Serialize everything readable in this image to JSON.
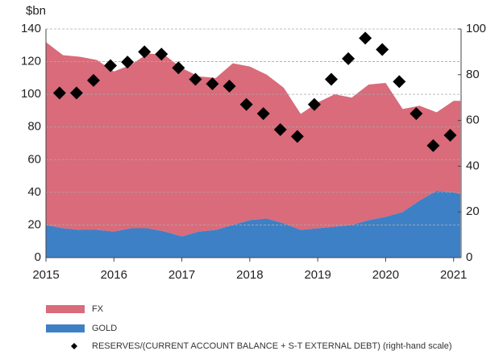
{
  "chart_data": {
    "type": "stacked-area-scatter",
    "ylabel": "$bn",
    "x": [
      2015,
      2015.25,
      2015.5,
      2015.75,
      2016,
      2016.25,
      2016.5,
      2016.75,
      2017,
      2017.25,
      2017.5,
      2017.75,
      2018,
      2018.25,
      2018.5,
      2018.75,
      2019,
      2019.25,
      2019.5,
      2019.75,
      2020,
      2020.25,
      2020.5,
      2020.75,
      2021,
      2021.1
    ],
    "series": [
      {
        "name": "GOLD",
        "color": "#3e80c6",
        "values": [
          20,
          18,
          17,
          17,
          16,
          18,
          18,
          16,
          13,
          16,
          17,
          20,
          23,
          24,
          21,
          17,
          18,
          19,
          20,
          23,
          25,
          28,
          35,
          41,
          40,
          39
        ]
      },
      {
        "name": "FX",
        "color": "#d96b7a",
        "values": [
          112,
          106,
          106,
          104,
          98,
          100,
          107,
          108,
          103,
          95,
          93,
          99,
          94,
          88,
          83,
          71,
          77,
          81,
          78,
          83,
          82,
          63,
          58,
          48,
          56,
          57
        ]
      },
      {
        "name": "RESERVES/(CURRENT ACCOUNT BALANCE + S-T EXTERNAL DEBT) (right-hand scale)",
        "color": "#000000",
        "axis": "y2",
        "x": [
          2015.2,
          2015.45,
          2015.7,
          2015.95,
          2016.2,
          2016.45,
          2016.7,
          2016.95,
          2017.2,
          2017.45,
          2017.7,
          2017.95,
          2018.2,
          2018.45,
          2018.7,
          2018.95,
          2019.2,
          2019.45,
          2019.7,
          2019.95,
          2020.2,
          2020.45,
          2020.7,
          2020.95
        ],
        "values": [
          72,
          72,
          77.5,
          84,
          85.5,
          90,
          89,
          83,
          78,
          76,
          75,
          67,
          63,
          56,
          53,
          67,
          78,
          87,
          96,
          91,
          77,
          63,
          49,
          53.5
        ]
      }
    ],
    "xlim": [
      2015,
      2021.11
    ],
    "xticks": [
      2015,
      2016,
      2017,
      2018,
      2019,
      2020,
      2021
    ],
    "ylim": [
      0,
      140
    ],
    "yticks": [
      0,
      20,
      40,
      60,
      80,
      100,
      120,
      140
    ],
    "y2lim": [
      0,
      100
    ],
    "y2ticks": [
      0,
      20,
      40,
      60,
      80,
      100
    ],
    "grid": true
  }
}
